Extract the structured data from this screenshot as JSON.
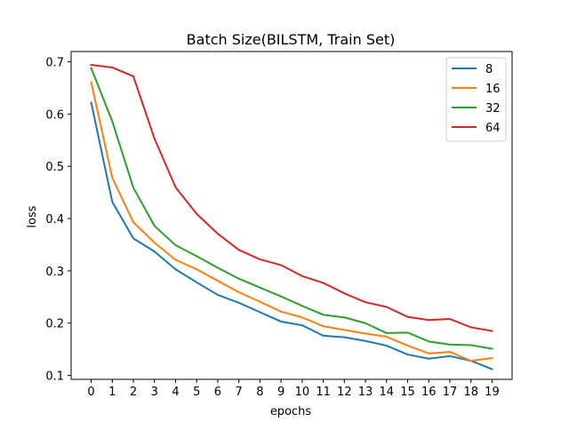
{
  "chart_data": {
    "type": "line",
    "title": "Batch Size(BILSTM, Train Set)",
    "xlabel": "epochs",
    "ylabel": "loss",
    "x": [
      0,
      1,
      2,
      3,
      4,
      5,
      6,
      7,
      8,
      9,
      10,
      11,
      12,
      13,
      14,
      15,
      16,
      17,
      18,
      19
    ],
    "xlim": [
      -0.95,
      19.95
    ],
    "ylim": [
      0.0925,
      0.7195
    ],
    "yticks": [
      "0.1",
      "0.2",
      "0.3",
      "0.4",
      "0.5",
      "0.6",
      "0.7"
    ],
    "grid": false,
    "legend_position": "top-right",
    "series": [
      {
        "name": "8",
        "color": "#1f77b4",
        "values": [
          0.622,
          0.432,
          0.362,
          0.337,
          0.303,
          0.278,
          0.254,
          0.239,
          0.221,
          0.203,
          0.196,
          0.176,
          0.173,
          0.166,
          0.157,
          0.14,
          0.132,
          0.137,
          0.128,
          0.112
        ]
      },
      {
        "name": "16",
        "color": "#ff7f0e",
        "values": [
          0.661,
          0.478,
          0.393,
          0.354,
          0.321,
          0.303,
          0.281,
          0.259,
          0.241,
          0.222,
          0.211,
          0.194,
          0.187,
          0.18,
          0.174,
          0.157,
          0.142,
          0.145,
          0.128,
          0.133
        ]
      },
      {
        "name": "32",
        "color": "#2ca02c",
        "values": [
          0.688,
          0.586,
          0.459,
          0.386,
          0.349,
          0.328,
          0.306,
          0.285,
          0.268,
          0.251,
          0.233,
          0.216,
          0.211,
          0.2,
          0.181,
          0.182,
          0.165,
          0.159,
          0.158,
          0.151
        ]
      },
      {
        "name": "64",
        "color": "#d62728",
        "values": [
          0.694,
          0.689,
          0.672,
          0.553,
          0.46,
          0.409,
          0.371,
          0.34,
          0.322,
          0.311,
          0.29,
          0.277,
          0.257,
          0.24,
          0.231,
          0.212,
          0.206,
          0.208,
          0.192,
          0.185
        ]
      }
    ]
  }
}
